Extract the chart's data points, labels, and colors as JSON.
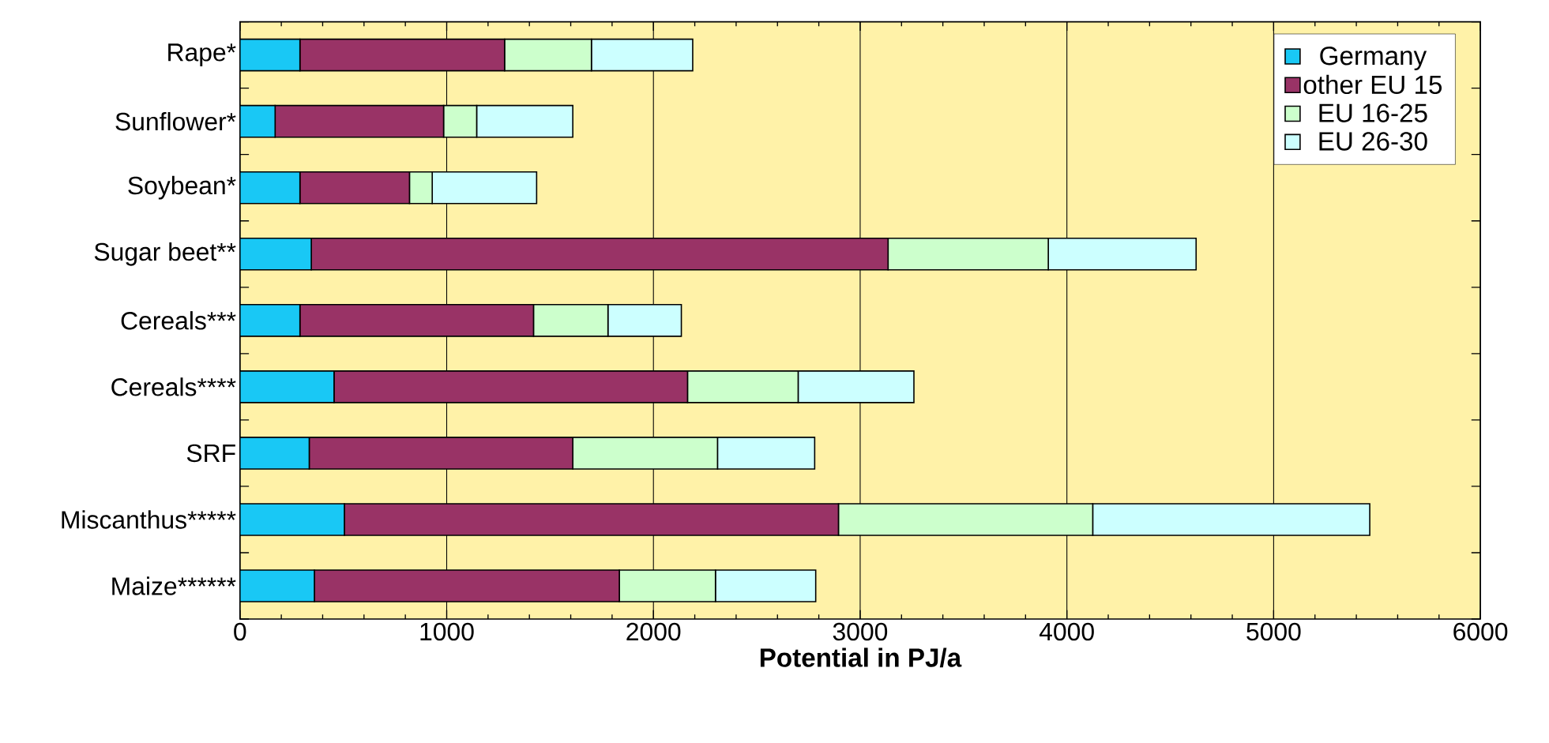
{
  "chart_data": {
    "type": "bar",
    "orientation": "horizontal",
    "stacked": true,
    "xlabel": "Potential in PJ/a",
    "categories": [
      "Rape*",
      "Sunflower*",
      "Soybean*",
      "Sugar beet**",
      "Cereals***",
      "Cereals****",
      "SRF",
      "Miscanthus*****",
      "Maize******"
    ],
    "series": [
      {
        "name": "Germany",
        "color": "#19c8f5",
        "values": [
          290,
          170,
          290,
          345,
          290,
          455,
          335,
          505,
          360
        ]
      },
      {
        "name": "other EU 15",
        "color": "#993366",
        "values": [
          990,
          815,
          530,
          2790,
          1130,
          1710,
          1275,
          2390,
          1475
        ]
      },
      {
        "name": "EU 16-25",
        "color": "#ccffcc",
        "values": [
          420,
          160,
          110,
          775,
          360,
          535,
          700,
          1230,
          465
        ]
      },
      {
        "name": "EU 26-30",
        "color": "#ccffff",
        "values": [
          490,
          465,
          505,
          715,
          355,
          560,
          470,
          1340,
          485
        ]
      }
    ],
    "xlim": [
      0,
      6000
    ],
    "xticks": [
      0,
      1000,
      2000,
      3000,
      4000,
      5000,
      6000
    ],
    "grid": "x",
    "legend": "top right"
  }
}
